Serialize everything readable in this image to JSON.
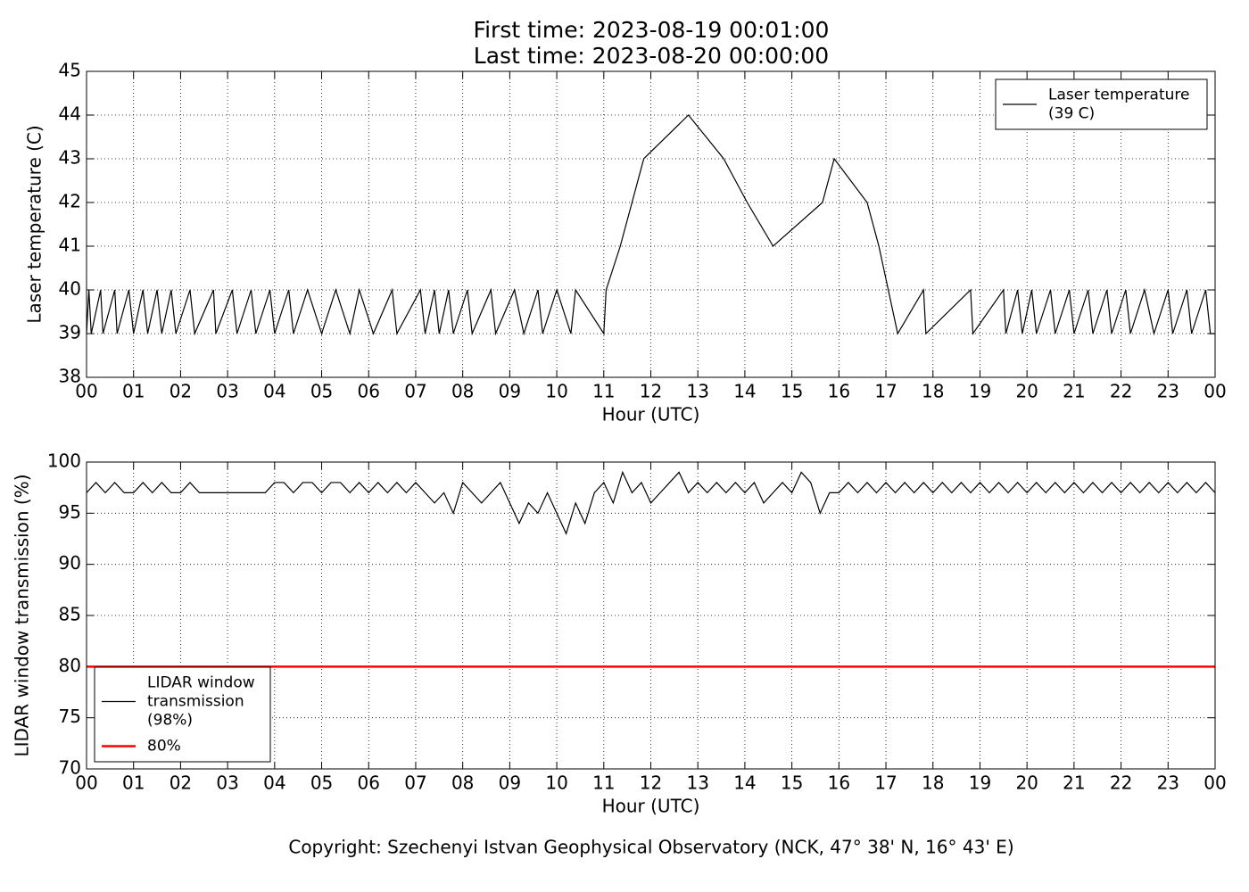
{
  "title": [
    "First time: 2023-08-19 00:01:00",
    "Last time: 2023-08-20 00:00:00"
  ],
  "footer": "Copyright: Szechenyi Istvan Geophysical Observatory (NCK, 47° 38' N, 16° 43' E)",
  "chart_data": [
    {
      "type": "line",
      "xlabel": "Hour (UTC)",
      "ylabel": "Laser temperature (C)",
      "xlim": [
        0,
        24
      ],
      "ylim": [
        38,
        45
      ],
      "yticks": [
        38,
        39,
        40,
        41,
        42,
        43,
        44,
        45
      ],
      "xticks": [
        {
          "value": 0,
          "label": "00"
        },
        {
          "value": 1,
          "label": "01"
        },
        {
          "value": 2,
          "label": "02"
        },
        {
          "value": 3,
          "label": "03"
        },
        {
          "value": 4,
          "label": "04"
        },
        {
          "value": 5,
          "label": "05"
        },
        {
          "value": 6,
          "label": "06"
        },
        {
          "value": 7,
          "label": "07"
        },
        {
          "value": 8,
          "label": "08"
        },
        {
          "value": 9,
          "label": "09"
        },
        {
          "value": 10,
          "label": "10"
        },
        {
          "value": 11,
          "label": "11"
        },
        {
          "value": 12,
          "label": "12"
        },
        {
          "value": 13,
          "label": "13"
        },
        {
          "value": 14,
          "label": "14"
        },
        {
          "value": 15,
          "label": "15"
        },
        {
          "value": 16,
          "label": "16"
        },
        {
          "value": 17,
          "label": "17"
        },
        {
          "value": 18,
          "label": "18"
        },
        {
          "value": 19,
          "label": "19"
        },
        {
          "value": 20,
          "label": "20"
        },
        {
          "value": 21,
          "label": "21"
        },
        {
          "value": 22,
          "label": "22"
        },
        {
          "value": 23,
          "label": "23"
        },
        {
          "value": 24,
          "label": "00"
        }
      ],
      "grid": true,
      "legend": "upper right",
      "series": [
        {
          "name": [
            "Laser temperature",
            "(39 C)"
          ],
          "color": "#000000",
          "width": 1.2,
          "x": [
            0,
            0.05,
            0.1,
            0.3,
            0.35,
            0.6,
            0.65,
            0.9,
            1.0,
            1.2,
            1.3,
            1.5,
            1.6,
            1.8,
            1.9,
            2.2,
            2.3,
            2.7,
            2.75,
            3.1,
            3.2,
            3.5,
            3.6,
            3.9,
            4.0,
            4.3,
            4.4,
            4.7,
            5.0,
            5.3,
            5.6,
            5.8,
            6.1,
            6.5,
            6.6,
            7.1,
            7.2,
            7.4,
            7.5,
            7.7,
            7.8,
            8.1,
            8.2,
            8.6,
            8.7,
            9.1,
            9.3,
            9.6,
            9.7,
            10.0,
            10.3,
            10.4,
            11.0,
            11.05,
            11.35,
            11.6,
            11.85,
            12.8,
            13.55,
            14.05,
            14.6,
            15.65,
            15.9,
            16.6,
            16.85,
            17.05,
            17.25,
            17.8,
            17.85,
            18.8,
            18.85,
            19.5,
            19.55,
            19.8,
            19.9,
            20.1,
            20.2,
            20.5,
            20.6,
            20.9,
            21.0,
            21.3,
            21.4,
            21.7,
            21.8,
            22.1,
            22.2,
            22.5,
            22.7,
            23.0,
            23.1,
            23.4,
            23.5,
            23.8,
            23.9,
            24
          ],
          "values": [
            39,
            40,
            39,
            40,
            39,
            40,
            39,
            40,
            39,
            40,
            39,
            40,
            39,
            40,
            39,
            40,
            39,
            40,
            39,
            40,
            39,
            40,
            39,
            40,
            39,
            40,
            39,
            40,
            39,
            40,
            39,
            40,
            39,
            40,
            39,
            40,
            39,
            40,
            39,
            40,
            39,
            40,
            39,
            40,
            39,
            40,
            39,
            40,
            39,
            40,
            39,
            40,
            39,
            40,
            41,
            42,
            43,
            44,
            43,
            42,
            41,
            42,
            43,
            42,
            41,
            40,
            39,
            40,
            39,
            40,
            39,
            40,
            39,
            40,
            39,
            40,
            39,
            40,
            39,
            40,
            39,
            40,
            39,
            40,
            39,
            40,
            39,
            40,
            39,
            40,
            39,
            40,
            39,
            40,
            39,
            39
          ]
        }
      ]
    },
    {
      "type": "line",
      "xlabel": "Hour (UTC)",
      "ylabel": "LIDAR window transmission (%)",
      "xlim": [
        0,
        24
      ],
      "ylim": [
        70,
        100
      ],
      "yticks": [
        70,
        75,
        80,
        85,
        90,
        95,
        100
      ],
      "xticks": [
        {
          "value": 0,
          "label": "00"
        },
        {
          "value": 1,
          "label": "01"
        },
        {
          "value": 2,
          "label": "02"
        },
        {
          "value": 3,
          "label": "03"
        },
        {
          "value": 4,
          "label": "04"
        },
        {
          "value": 5,
          "label": "05"
        },
        {
          "value": 6,
          "label": "06"
        },
        {
          "value": 7,
          "label": "07"
        },
        {
          "value": 8,
          "label": "08"
        },
        {
          "value": 9,
          "label": "09"
        },
        {
          "value": 10,
          "label": "10"
        },
        {
          "value": 11,
          "label": "11"
        },
        {
          "value": 12,
          "label": "12"
        },
        {
          "value": 13,
          "label": "13"
        },
        {
          "value": 14,
          "label": "14"
        },
        {
          "value": 15,
          "label": "15"
        },
        {
          "value": 16,
          "label": "16"
        },
        {
          "value": 17,
          "label": "17"
        },
        {
          "value": 18,
          "label": "18"
        },
        {
          "value": 19,
          "label": "19"
        },
        {
          "value": 20,
          "label": "20"
        },
        {
          "value": 21,
          "label": "21"
        },
        {
          "value": 22,
          "label": "22"
        },
        {
          "value": 23,
          "label": "23"
        },
        {
          "value": 24,
          "label": "00"
        }
      ],
      "grid": true,
      "legend": "lower left",
      "series": [
        {
          "name": [
            "LIDAR window",
            "transmission",
            "(98%)"
          ],
          "color": "#000000",
          "width": 1.2,
          "x": [
            0,
            0.2,
            0.4,
            0.6,
            0.8,
            1.0,
            1.2,
            1.4,
            1.6,
            1.8,
            2.0,
            2.2,
            2.4,
            2.6,
            2.8,
            3.0,
            3.2,
            3.4,
            3.6,
            3.8,
            4.0,
            4.2,
            4.4,
            4.6,
            4.8,
            5.0,
            5.2,
            5.4,
            5.6,
            5.8,
            6.0,
            6.2,
            6.4,
            6.6,
            6.8,
            7.0,
            7.2,
            7.4,
            7.6,
            7.8,
            8.0,
            8.2,
            8.4,
            8.6,
            8.8,
            9.0,
            9.2,
            9.4,
            9.6,
            9.8,
            10.0,
            10.2,
            10.4,
            10.6,
            10.8,
            11.0,
            11.2,
            11.4,
            11.6,
            11.8,
            12.0,
            12.2,
            12.4,
            12.6,
            12.8,
            13.0,
            13.2,
            13.4,
            13.6,
            13.8,
            14.0,
            14.2,
            14.4,
            14.6,
            14.8,
            15.0,
            15.2,
            15.4,
            15.6,
            15.8,
            16.0,
            16.2,
            16.4,
            16.6,
            16.8,
            17.0,
            17.2,
            17.4,
            17.6,
            17.8,
            18.0,
            18.2,
            18.4,
            18.6,
            18.8,
            19.0,
            19.2,
            19.4,
            19.6,
            19.8,
            20.0,
            20.2,
            20.4,
            20.6,
            20.8,
            21.0,
            21.2,
            21.4,
            21.6,
            21.8,
            22.0,
            22.2,
            22.4,
            22.6,
            22.8,
            23.0,
            23.2,
            23.4,
            23.6,
            23.8,
            24.0
          ],
          "values": [
            97,
            98,
            97,
            98,
            97,
            97,
            98,
            97,
            98,
            97,
            97,
            98,
            97,
            97,
            97,
            97,
            97,
            97,
            97,
            97,
            98,
            98,
            97,
            98,
            98,
            97,
            98,
            98,
            97,
            98,
            97,
            98,
            97,
            98,
            97,
            98,
            97,
            96,
            97,
            95,
            98,
            97,
            96,
            97,
            98,
            96,
            94,
            96,
            95,
            97,
            95,
            93,
            96,
            94,
            97,
            98,
            96,
            99,
            97,
            98,
            96,
            97,
            98,
            99,
            97,
            98,
            97,
            98,
            97,
            98,
            97,
            98,
            96,
            97,
            98,
            97,
            99,
            98,
            95,
            97,
            97,
            98,
            97,
            98,
            97,
            98,
            97,
            98,
            97,
            98,
            97,
            98,
            97,
            98,
            97,
            98,
            97,
            98,
            97,
            98,
            97,
            98,
            97,
            98,
            97,
            98,
            97,
            98,
            97,
            98,
            97,
            98,
            97,
            98,
            97,
            98,
            97,
            98,
            97,
            98,
            97
          ]
        },
        {
          "name": [
            "80%"
          ],
          "color": "#ff0000",
          "width": 2.5,
          "x": [
            0,
            24
          ],
          "values": [
            80,
            80
          ]
        }
      ]
    }
  ]
}
